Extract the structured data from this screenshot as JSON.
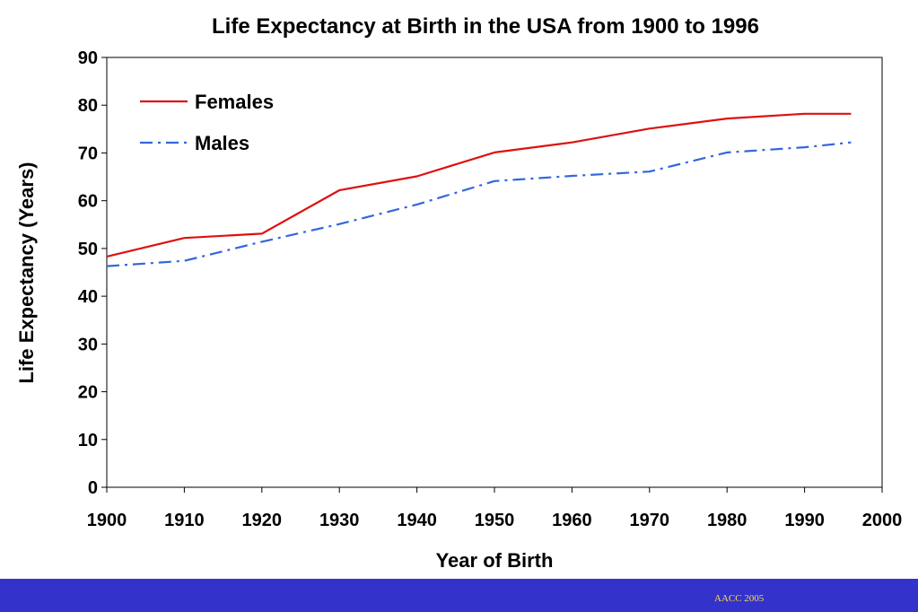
{
  "footer": {
    "credit": "AACC 2005"
  },
  "chart_data": {
    "type": "line",
    "title": "Life Expectancy at Birth in the USA from 1900 to 1996",
    "xlabel": "Year of Birth",
    "ylabel": "Life Expectancy (Years)",
    "xlim": [
      1900,
      2000
    ],
    "ylim": [
      0,
      90
    ],
    "xticks": [
      1900,
      1910,
      1920,
      1930,
      1940,
      1950,
      1960,
      1970,
      1980,
      1990,
      2000
    ],
    "yticks": [
      0,
      10,
      20,
      30,
      40,
      50,
      60,
      70,
      80,
      90
    ],
    "grid": false,
    "legend": "top-left",
    "series": [
      {
        "name": "Females",
        "color": "#dd1111",
        "style": "solid",
        "x": [
          1900,
          1910,
          1920,
          1930,
          1940,
          1950,
          1960,
          1970,
          1980,
          1990,
          1996
        ],
        "y": [
          48.3,
          52.2,
          53.1,
          62.2,
          65.1,
          70.1,
          72.2,
          75.1,
          77.2,
          78.2,
          78.2
        ]
      },
      {
        "name": "Males",
        "color": "#3366dd",
        "style": "dash-dot",
        "x": [
          1900,
          1910,
          1920,
          1930,
          1940,
          1950,
          1960,
          1970,
          1980,
          1990,
          1996
        ],
        "y": [
          46.3,
          47.4,
          51.4,
          55.1,
          59.2,
          64.1,
          65.2,
          66.1,
          70.1,
          71.2,
          72.2
        ]
      }
    ]
  }
}
